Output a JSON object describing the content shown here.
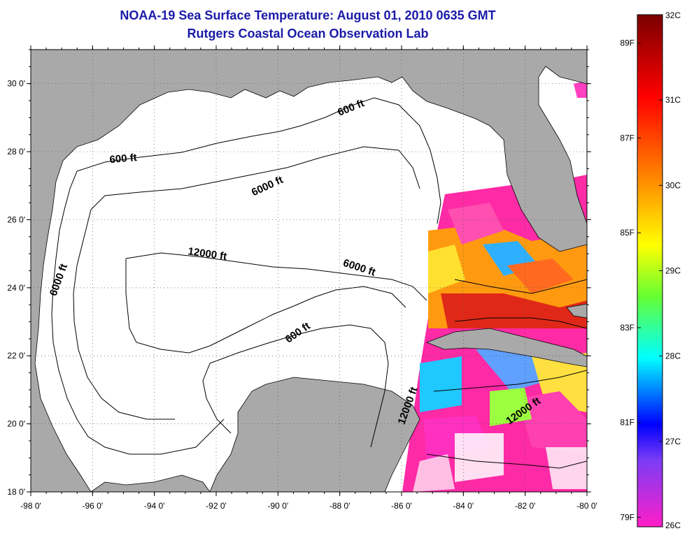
{
  "header": {
    "title_line1": "NOAA-19 Sea Surface Temperature:  August 01, 2010 0635 GMT",
    "title_line2": "Rutgers Coastal Ocean Observation Lab"
  },
  "map": {
    "lon_range": [
      -98,
      -80
    ],
    "lat_range": [
      18,
      31
    ],
    "lon_ticks": [
      {
        "value": -98,
        "label": "-98 0'"
      },
      {
        "value": -96,
        "label": "-96 0'"
      },
      {
        "value": -94,
        "label": "-94 0'"
      },
      {
        "value": -92,
        "label": "-92 0'"
      },
      {
        "value": -90,
        "label": "-90 0'"
      },
      {
        "value": -88,
        "label": "-88 0'"
      },
      {
        "value": -86,
        "label": "-86 0'"
      },
      {
        "value": -84,
        "label": "-84 0'"
      },
      {
        "value": -82,
        "label": "-82 0'"
      },
      {
        "value": -80,
        "label": "-80 0'"
      }
    ],
    "lat_ticks": [
      {
        "value": 18,
        "label": "18 0'"
      },
      {
        "value": 20,
        "label": "20 0'"
      },
      {
        "value": 22,
        "label": "22 0'"
      },
      {
        "value": 24,
        "label": "24 0'"
      },
      {
        "value": 26,
        "label": "26 0'"
      },
      {
        "value": 28,
        "label": "28 0'"
      },
      {
        "value": 30,
        "label": "30 0'"
      }
    ],
    "grid": "dotted",
    "land_color": "#a9a9a9",
    "water_color": "#ffffff",
    "contour_labels": [
      {
        "text": "600 ft",
        "lon": -87.6,
        "lat": 29.2,
        "angle": -22
      },
      {
        "text": "600 ft",
        "lon": -95.0,
        "lat": 27.7,
        "angle": -5
      },
      {
        "text": "6000 ft",
        "lon": -90.3,
        "lat": 26.9,
        "angle": -25
      },
      {
        "text": "6000 ft",
        "lon": -97.0,
        "lat": 24.2,
        "angle": -70
      },
      {
        "text": "12000 ft",
        "lon": -92.3,
        "lat": 24.9,
        "angle": 8
      },
      {
        "text": "6000 ft",
        "lon": -87.4,
        "lat": 24.5,
        "angle": 18
      },
      {
        "text": "600 ft",
        "lon": -89.3,
        "lat": 22.6,
        "angle": -35
      },
      {
        "text": "12000 ft",
        "lon": -85.7,
        "lat": 20.5,
        "angle": -70
      },
      {
        "text": "12000 ft",
        "lon": -82.0,
        "lat": 20.3,
        "angle": -35
      }
    ]
  },
  "colorbar": {
    "celsius": [
      {
        "value": 32,
        "label": "32C"
      },
      {
        "value": 31,
        "label": "31C"
      },
      {
        "value": 30,
        "label": "30C"
      },
      {
        "value": 29,
        "label": "29C"
      },
      {
        "value": 28,
        "label": "28C"
      },
      {
        "value": 27,
        "label": "27C"
      },
      {
        "value": 26,
        "label": "26C"
      }
    ],
    "fahrenheit": [
      {
        "value": 89,
        "label": "89F"
      },
      {
        "value": 87,
        "label": "87F"
      },
      {
        "value": 85,
        "label": "85F"
      },
      {
        "value": 83,
        "label": "83F"
      },
      {
        "value": 81,
        "label": "81F"
      },
      {
        "value": 79,
        "label": "79F"
      }
    ],
    "colors_top_to_bottom": [
      "#8b0000",
      "#ff0000",
      "#ff8c00",
      "#ffff00",
      "#7fff00",
      "#00ffff",
      "#0000ff",
      "#8a2be2",
      "#ff1493"
    ]
  }
}
